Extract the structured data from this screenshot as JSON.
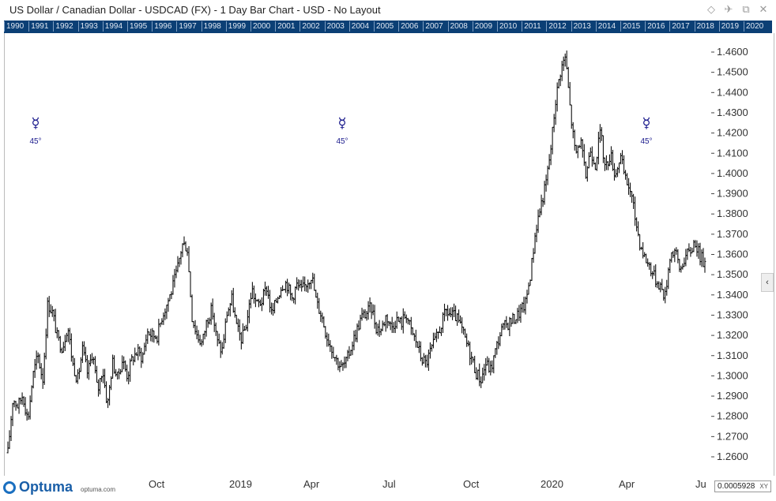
{
  "window": {
    "title": "US Dollar / Canadian Dollar - USDCAD (FX) - 1 Day Bar Chart - USD - No Layout",
    "icons": [
      "diamond-icon",
      "pin-icon",
      "restore-icon",
      "close-icon"
    ]
  },
  "year_strip": [
    "1990",
    "1991",
    "1992",
    "1993",
    "1994",
    "1995",
    "1996",
    "1997",
    "1998",
    "1999",
    "2000",
    "2001",
    "2002",
    "2003",
    "2004",
    "2005",
    "2006",
    "2007",
    "2008",
    "2009",
    "2010",
    "2011",
    "2012",
    "2013",
    "2014",
    "2015",
    "2016",
    "2017",
    "2018",
    "2019",
    "2020"
  ],
  "footer": {
    "logo_text": "Optuma",
    "logo_url": "optuma.com",
    "x_labels": [
      "Oct",
      "2019",
      "Apr",
      "Jul",
      "Oct",
      "2020",
      "Apr",
      "Ju"
    ],
    "readout_value": "0.0005928",
    "readout_tag": "XY"
  },
  "markers": [
    {
      "symbol": "☿",
      "label": "45°"
    },
    {
      "symbol": "☿",
      "label": "45°"
    },
    {
      "symbol": "☿",
      "label": "45°"
    }
  ],
  "side_button": "‹",
  "colors": {
    "bars": "#111111",
    "marker": "#1a1a8c",
    "strip": "#0b3f75"
  },
  "chart_data": {
    "type": "bar",
    "subtype": "ohlc",
    "symbol": "USDCAD",
    "x_range": [
      "2018-06",
      "2020-07"
    ],
    "ylim": [
      1.25,
      1.47
    ],
    "y_ticks": [
      1.26,
      1.27,
      1.28,
      1.29,
      1.3,
      1.31,
      1.32,
      1.33,
      1.34,
      1.35,
      1.36,
      1.37,
      1.38,
      1.39,
      1.4,
      1.41,
      1.42,
      1.43,
      1.44,
      1.45,
      1.46
    ],
    "y_tick_labels": [
      "1.2600",
      "1.2700",
      "1.2800",
      "1.2900",
      "1.3000",
      "1.3100",
      "1.3200",
      "1.3300",
      "1.3400",
      "1.3500",
      "1.3600",
      "1.3700",
      "1.3800",
      "1.3900",
      "1.4000",
      "1.4100",
      "1.4200",
      "1.4300",
      "1.4400",
      "1.4500",
      "1.4600"
    ],
    "close_path": [
      1.262,
      1.289,
      1.285,
      1.291,
      1.278,
      1.3,
      1.31,
      1.298,
      1.336,
      1.331,
      1.318,
      1.314,
      1.325,
      1.306,
      1.298,
      1.313,
      1.301,
      1.312,
      1.292,
      1.304,
      1.285,
      1.307,
      1.299,
      1.308,
      1.3,
      1.309,
      1.312,
      1.309,
      1.322,
      1.32,
      1.32,
      1.33,
      1.336,
      1.343,
      1.352,
      1.365,
      1.364,
      1.329,
      1.32,
      1.316,
      1.328,
      1.333,
      1.317,
      1.312,
      1.331,
      1.338,
      1.323,
      1.318,
      1.327,
      1.343,
      1.335,
      1.337,
      1.344,
      1.33,
      1.338,
      1.345,
      1.346,
      1.338,
      1.345,
      1.342,
      1.346,
      1.35,
      1.336,
      1.33,
      1.32,
      1.314,
      1.308,
      1.304,
      1.307,
      1.315,
      1.322,
      1.329,
      1.331,
      1.334,
      1.324,
      1.323,
      1.33,
      1.324,
      1.328,
      1.326,
      1.331,
      1.322,
      1.317,
      1.309,
      1.306,
      1.313,
      1.318,
      1.325,
      1.332,
      1.33,
      1.329,
      1.324,
      1.317,
      1.31,
      1.302,
      1.298,
      1.306,
      1.303,
      1.313,
      1.322,
      1.325,
      1.327,
      1.329,
      1.332,
      1.336,
      1.351,
      1.372,
      1.384,
      1.394,
      1.411,
      1.436,
      1.451,
      1.458,
      1.43,
      1.409,
      1.417,
      1.398,
      1.412,
      1.405,
      1.421,
      1.402,
      1.41,
      1.399,
      1.409,
      1.397,
      1.392,
      1.378,
      1.365,
      1.358,
      1.354,
      1.348,
      1.345,
      1.339,
      1.36,
      1.362,
      1.352,
      1.359,
      1.361,
      1.367,
      1.359,
      1.356
    ]
  }
}
